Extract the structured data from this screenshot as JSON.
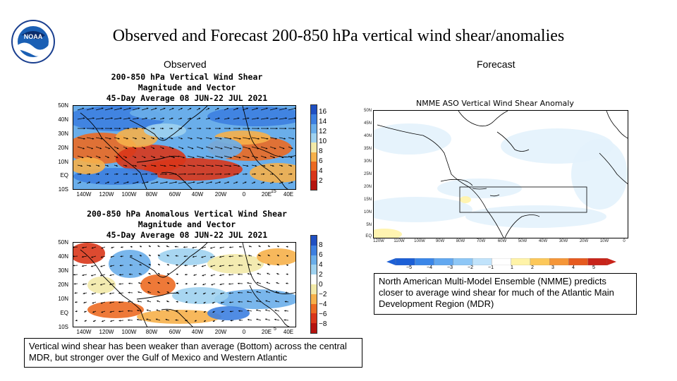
{
  "slide_title": "Observed and Forecast 200-850 hPa vertical wind shear/anomalies",
  "logo": {
    "icon": "noaa-logo-icon",
    "text": "NOAA"
  },
  "headings": {
    "observed": "Observed",
    "forecast": "Forecast"
  },
  "observed_top": {
    "title_lines": [
      "200-850 hPa Vertical Wind Shear",
      "Magnitude and Vector",
      "45-Day Average 08 JUN-22 JUL 2021"
    ],
    "lat_labels": [
      "50N",
      "40N",
      "30N",
      "20N",
      "10N",
      "EQ",
      "10S"
    ],
    "lon_labels": [
      "140W",
      "120W",
      "100W",
      "80W",
      "60W",
      "40W",
      "20W",
      "0",
      "20E",
      "40E"
    ],
    "vector_ref": "15",
    "colorbar_labels": [
      "16",
      "14",
      "12",
      "10",
      "8",
      "6",
      "4",
      "2"
    ],
    "colorbar_colors": [
      "#1f4fc2",
      "#3d7fe0",
      "#6aaeea",
      "#9fd2f0",
      "#f2e9a8",
      "#f6b04a",
      "#ec6a22",
      "#d9361a",
      "#b5140f"
    ]
  },
  "observed_bottom": {
    "title_lines": [
      "200-850 hPa Anomalous Vertical Wind Shear",
      "Magnitude and Vector",
      "45-Day Average 08 JUN-22 JUL 2021"
    ],
    "lat_labels": [
      "50N",
      "40N",
      "30N",
      "20N",
      "10N",
      "EQ",
      "10S"
    ],
    "lon_labels": [
      "140W",
      "120W",
      "100W",
      "80W",
      "60W",
      "40W",
      "20W",
      "0",
      "20E",
      "40E"
    ],
    "vector_ref": "5",
    "colorbar_labels": [
      "8",
      "6",
      "4",
      "2",
      "0",
      "−2",
      "−4",
      "−6",
      "−8"
    ],
    "colorbar_colors": [
      "#1f4fc2",
      "#3d7fe0",
      "#6aaeea",
      "#9fd2f0",
      "#ffffff",
      "#f2e9a8",
      "#f6b04a",
      "#ec6a22",
      "#d9361a",
      "#b5140f"
    ]
  },
  "forecast_map": {
    "title": "NMME ASO Vertical Wind Shear Anomaly",
    "lat_labels": [
      "50N",
      "45N",
      "40N",
      "35N",
      "30N",
      "25N",
      "20N",
      "15N",
      "10N",
      "5N",
      "EQ"
    ],
    "lon_labels": [
      "120W",
      "110W",
      "100W",
      "90W",
      "80W",
      "70W",
      "60W",
      "50W",
      "40W",
      "30W",
      "20W",
      "10W",
      "0"
    ],
    "colorbar_labels": [
      "−5",
      "−4",
      "−3",
      "−2",
      "−1",
      "1",
      "2",
      "3",
      "4",
      "5"
    ],
    "colorbar_colors": [
      "#1c5fd6",
      "#3a86e8",
      "#62a8f0",
      "#8ec7f6",
      "#c1e3fb",
      "#ffffff",
      "#fff3a8",
      "#fcc85a",
      "#f59638",
      "#e65a1f",
      "#c8241a"
    ]
  },
  "textboxes": {
    "observed": "Vertical wind shear has been weaker than average (Bottom) across the central MDR, but stronger over the Gulf of Mexico and Western Atlantic",
    "forecast": "North American Multi-Model Ensemble (NMME) predicts closer to average wind shear for much of the Atlantic Main Development Region (MDR)"
  }
}
